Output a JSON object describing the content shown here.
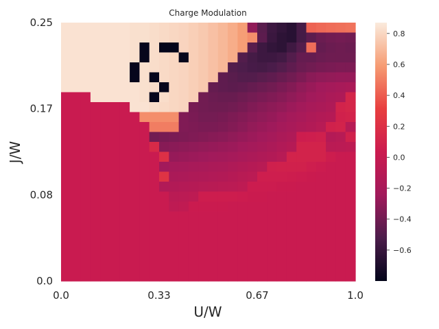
{
  "chart_data": {
    "type": "heatmap",
    "title": "Charge Modulation",
    "xlabel": "U/W",
    "ylabel": "J/W",
    "xlim": [
      0,
      1
    ],
    "ylim": [
      0,
      0.25
    ],
    "x_ticks": [
      "0.0",
      "0.33",
      "0.67",
      "1.0"
    ],
    "y_ticks": [
      "0.0",
      "0.08",
      "0.17",
      "0.25"
    ],
    "colorbar": {
      "min": -0.8,
      "max": 0.87,
      "ticks": [
        "0.8",
        "0.6",
        "0.4",
        "0.2",
        "0.0",
        "−0.2",
        "−0.4",
        "−0.6"
      ]
    },
    "grid": false,
    "rows": 26,
    "cols": 30,
    "z_rows_top_to_bottom": [
      [
        0.84,
        0.84,
        0.84,
        0.84,
        0.84,
        0.84,
        0.84,
        0.83,
        0.83,
        0.82,
        0.81,
        0.8,
        0.79,
        0.77,
        0.75,
        0.72,
        0.69,
        0.65,
        0.6,
        -0.3,
        -0.48,
        -0.58,
        -0.62,
        -0.66,
        -0.55,
        0.42,
        0.44,
        0.45,
        0.46,
        0.47
      ],
      [
        0.84,
        0.84,
        0.84,
        0.84,
        0.84,
        0.84,
        0.84,
        0.83,
        0.83,
        0.82,
        0.81,
        0.8,
        0.79,
        0.77,
        0.75,
        0.72,
        0.69,
        0.65,
        0.6,
        0.55,
        -0.47,
        -0.59,
        -0.64,
        -0.66,
        -0.55,
        -0.47,
        -0.42,
        -0.4,
        -0.39,
        -0.4
      ],
      [
        0.84,
        0.84,
        0.84,
        0.84,
        0.84,
        0.84,
        0.84,
        0.83,
        -0.79,
        0.82,
        -0.8,
        -0.8,
        0.79,
        0.77,
        0.75,
        0.72,
        0.69,
        0.65,
        0.6,
        -0.48,
        -0.58,
        -0.62,
        -0.64,
        -0.57,
        -0.5,
        0.45,
        -0.44,
        -0.42,
        -0.41,
        -0.42
      ],
      [
        0.84,
        0.84,
        0.84,
        0.84,
        0.84,
        0.84,
        0.84,
        0.83,
        -0.79,
        0.82,
        0.81,
        0.8,
        -0.79,
        0.77,
        0.75,
        0.72,
        0.69,
        0.65,
        -0.5,
        -0.55,
        -0.58,
        -0.58,
        -0.56,
        -0.5,
        -0.44,
        -0.44,
        -0.42,
        -0.41,
        -0.41,
        -0.41
      ],
      [
        0.84,
        0.84,
        0.84,
        0.84,
        0.84,
        0.84,
        0.84,
        -0.79,
        0.83,
        0.82,
        0.81,
        0.8,
        0.79,
        0.77,
        0.75,
        0.72,
        0.69,
        -0.5,
        -0.52,
        -0.54,
        -0.55,
        -0.53,
        -0.5,
        -0.46,
        -0.42,
        -0.4,
        -0.38,
        -0.37,
        -0.36,
        -0.36
      ],
      [
        0.84,
        0.84,
        0.84,
        0.84,
        0.84,
        0.84,
        0.84,
        -0.79,
        0.83,
        -0.79,
        0.81,
        0.8,
        0.79,
        0.77,
        0.75,
        0.72,
        -0.46,
        -0.48,
        -0.5,
        -0.5,
        -0.48,
        -0.46,
        -0.43,
        -0.4,
        -0.36,
        -0.32,
        -0.3,
        -0.29,
        -0.28,
        -0.28
      ],
      [
        0.84,
        0.84,
        0.84,
        0.84,
        0.84,
        0.84,
        0.84,
        0.84,
        0.83,
        0.82,
        -0.79,
        0.8,
        0.79,
        0.77,
        0.75,
        -0.44,
        -0.46,
        -0.47,
        -0.46,
        -0.44,
        -0.42,
        -0.4,
        -0.37,
        -0.34,
        -0.3,
        -0.27,
        -0.24,
        -0.22,
        -0.2,
        -0.18
      ],
      [
        0.02,
        0.02,
        0.02,
        0.84,
        0.84,
        0.84,
        0.84,
        0.84,
        0.83,
        -0.79,
        0.82,
        0.8,
        0.79,
        0.77,
        -0.4,
        -0.42,
        -0.43,
        -0.43,
        -0.41,
        -0.39,
        -0.37,
        -0.35,
        -0.33,
        -0.3,
        -0.27,
        -0.24,
        -0.21,
        -0.18,
        -0.16,
        0.12
      ],
      [
        0.02,
        0.02,
        0.02,
        0.02,
        0.02,
        0.02,
        0.02,
        0.84,
        0.84,
        0.82,
        0.81,
        0.8,
        0.79,
        -0.38,
        -0.4,
        -0.41,
        -0.41,
        -0.4,
        -0.38,
        -0.35,
        -0.33,
        -0.31,
        -0.29,
        -0.26,
        -0.23,
        -0.2,
        -0.18,
        -0.15,
        0.1,
        0.12
      ],
      [
        0.02,
        0.02,
        0.02,
        0.02,
        0.02,
        0.02,
        0.02,
        0.02,
        0.55,
        0.55,
        0.55,
        0.55,
        -0.35,
        -0.37,
        -0.39,
        -0.39,
        -0.38,
        -0.36,
        -0.34,
        -0.32,
        -0.3,
        -0.28,
        -0.25,
        -0.22,
        -0.19,
        -0.16,
        -0.13,
        -0.11,
        0.08,
        0.1
      ],
      [
        0.02,
        0.02,
        0.02,
        0.02,
        0.02,
        0.02,
        0.02,
        0.02,
        0.02,
        0.5,
        0.5,
        0.5,
        -0.35,
        -0.36,
        -0.37,
        -0.37,
        -0.36,
        -0.34,
        -0.32,
        -0.29,
        -0.27,
        -0.25,
        -0.22,
        -0.19,
        -0.16,
        -0.13,
        -0.1,
        0.08,
        0.1,
        -0.1
      ],
      [
        0.02,
        0.02,
        0.02,
        0.02,
        0.02,
        0.02,
        0.02,
        0.02,
        0.02,
        -0.4,
        -0.38,
        -0.37,
        -0.36,
        -0.35,
        -0.34,
        -0.33,
        -0.32,
        -0.3,
        -0.28,
        -0.26,
        -0.24,
        -0.21,
        -0.18,
        -0.15,
        0.05,
        0.06,
        0.07,
        -0.12,
        -0.1,
        0.08
      ],
      [
        0.02,
        0.02,
        0.02,
        0.02,
        0.02,
        0.02,
        0.02,
        0.02,
        0.02,
        0.15,
        -0.33,
        -0.32,
        -0.31,
        -0.3,
        -0.29,
        -0.28,
        -0.27,
        -0.26,
        -0.24,
        -0.22,
        -0.2,
        -0.17,
        -0.14,
        -0.11,
        0.1,
        0.1,
        0.1,
        -0.08,
        -0.07,
        -0.06
      ],
      [
        0.02,
        0.02,
        0.02,
        0.02,
        0.02,
        0.02,
        0.02,
        0.02,
        0.02,
        0.02,
        0.2,
        -0.28,
        -0.27,
        -0.26,
        -0.25,
        -0.24,
        -0.23,
        -0.21,
        -0.19,
        -0.17,
        -0.15,
        -0.13,
        -0.1,
        0.1,
        0.1,
        0.1,
        0.1,
        0.05,
        0.02,
        0.02
      ],
      [
        0.02,
        0.02,
        0.02,
        0.02,
        0.02,
        0.02,
        0.02,
        0.02,
        0.02,
        0.02,
        -0.24,
        -0.22,
        -0.21,
        -0.2,
        -0.19,
        -0.18,
        -0.17,
        -0.15,
        -0.13,
        -0.11,
        -0.09,
        0.07,
        0.08,
        0.08,
        0.08,
        0.06,
        0.04,
        0.02,
        0.02,
        0.02
      ],
      [
        0.02,
        0.02,
        0.02,
        0.02,
        0.02,
        0.02,
        0.02,
        0.02,
        0.02,
        0.02,
        0.22,
        -0.18,
        -0.17,
        -0.16,
        -0.15,
        -0.14,
        -0.13,
        -0.11,
        -0.09,
        -0.07,
        0.06,
        0.06,
        0.06,
        0.05,
        0.04,
        0.03,
        0.02,
        0.02,
        0.02,
        0.02
      ],
      [
        0.02,
        0.02,
        0.02,
        0.02,
        0.02,
        0.02,
        0.02,
        0.02,
        0.02,
        0.02,
        -0.14,
        -0.13,
        -0.12,
        -0.11,
        -0.1,
        -0.09,
        -0.08,
        -0.07,
        -0.05,
        0.04,
        0.04,
        0.04,
        0.03,
        0.03,
        0.02,
        0.02,
        0.02,
        0.02,
        0.02,
        0.02
      ],
      [
        0.02,
        0.02,
        0.02,
        0.02,
        0.02,
        0.02,
        0.02,
        0.02,
        0.02,
        0.02,
        0.02,
        -0.08,
        -0.07,
        -0.06,
        0.05,
        0.05,
        0.05,
        0.05,
        0.04,
        0.03,
        0.03,
        0.02,
        0.02,
        0.02,
        0.02,
        0.02,
        0.02,
        0.02,
        0.02,
        0.02
      ],
      [
        0.02,
        0.02,
        0.02,
        0.02,
        0.02,
        0.02,
        0.02,
        0.02,
        0.02,
        0.02,
        0.02,
        -0.05,
        -0.04,
        0.03,
        0.03,
        0.03,
        0.03,
        0.02,
        0.02,
        0.02,
        0.02,
        0.02,
        0.02,
        0.02,
        0.02,
        0.02,
        0.02,
        0.02,
        0.02,
        0.02
      ],
      [
        0.02,
        0.02,
        0.02,
        0.02,
        0.02,
        0.02,
        0.02,
        0.02,
        0.02,
        0.02,
        0.02,
        0.02,
        0.02,
        0.02,
        0.02,
        0.02,
        0.02,
        0.02,
        0.02,
        0.02,
        0.02,
        0.02,
        0.02,
        0.02,
        0.02,
        0.02,
        0.02,
        0.02,
        0.02,
        0.02
      ],
      [
        0.02,
        0.02,
        0.02,
        0.02,
        0.02,
        0.02,
        0.02,
        0.02,
        0.02,
        0.02,
        0.02,
        0.02,
        0.02,
        0.02,
        0.02,
        0.02,
        0.02,
        0.02,
        0.02,
        0.02,
        0.02,
        0.02,
        0.02,
        0.02,
        0.02,
        0.02,
        0.02,
        0.02,
        0.02,
        0.02
      ],
      [
        0.02,
        0.02,
        0.02,
        0.02,
        0.02,
        0.02,
        0.02,
        0.02,
        0.02,
        0.02,
        0.02,
        0.02,
        0.02,
        0.02,
        0.02,
        0.02,
        0.02,
        0.02,
        0.02,
        0.02,
        0.02,
        0.02,
        0.02,
        0.02,
        0.02,
        0.02,
        0.02,
        0.02,
        0.02,
        0.02
      ],
      [
        0.02,
        0.02,
        0.02,
        0.02,
        0.02,
        0.02,
        0.02,
        0.02,
        0.02,
        0.02,
        0.02,
        0.02,
        0.02,
        0.02,
        0.02,
        0.02,
        0.02,
        0.02,
        0.02,
        0.02,
        0.02,
        0.02,
        0.02,
        0.02,
        0.02,
        0.02,
        0.02,
        0.02,
        0.02,
        0.02
      ],
      [
        0.02,
        0.02,
        0.02,
        0.02,
        0.02,
        0.02,
        0.02,
        0.02,
        0.02,
        0.02,
        0.02,
        0.02,
        0.02,
        0.02,
        0.02,
        0.02,
        0.02,
        0.02,
        0.02,
        0.02,
        0.02,
        0.02,
        0.02,
        0.02,
        0.02,
        0.02,
        0.02,
        0.02,
        0.02,
        0.02
      ],
      [
        0.02,
        0.02,
        0.02,
        0.02,
        0.02,
        0.02,
        0.02,
        0.02,
        0.02,
        0.02,
        0.02,
        0.02,
        0.02,
        0.02,
        0.02,
        0.02,
        0.02,
        0.02,
        0.02,
        0.02,
        0.02,
        0.02,
        0.02,
        0.02,
        0.02,
        0.02,
        0.02,
        0.02,
        0.02,
        0.02
      ],
      [
        0.02,
        0.02,
        0.02,
        0.02,
        0.02,
        0.02,
        0.02,
        0.02,
        0.02,
        0.02,
        0.02,
        0.02,
        0.02,
        0.02,
        0.02,
        0.02,
        0.02,
        0.02,
        0.02,
        0.02,
        0.02,
        0.02,
        0.02,
        0.02,
        0.02,
        0.02,
        0.02,
        0.02,
        0.02,
        0.02
      ]
    ],
    "colorscale": [
      "#03051a",
      "#4c1d4b",
      "#a11a5b",
      "#cb1b4f",
      "#e83f3f",
      "#f69c73",
      "#faebdd"
    ]
  }
}
